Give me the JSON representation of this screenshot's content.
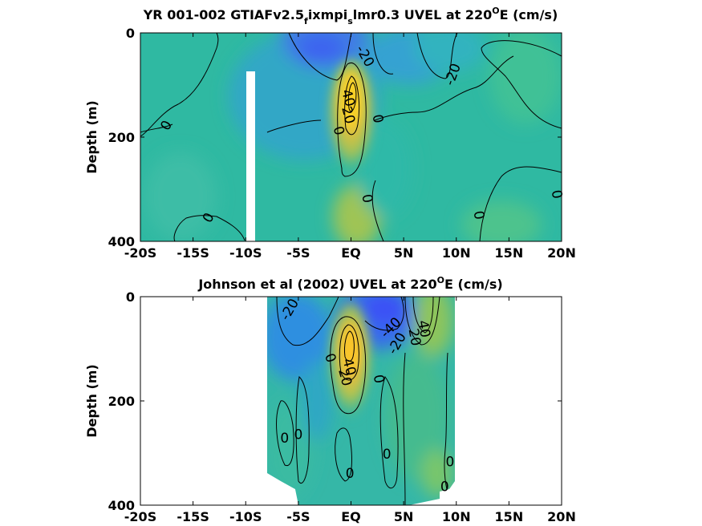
{
  "chart_data": [
    {
      "type": "heatmap",
      "title_main": "YR 001-002 GTIAFv2.5",
      "title_sub1": "f",
      "title_mid": "ixmpi",
      "title_sub2": "s",
      "title_tail": "lmr0.3 UVEL at 220",
      "title_sup": "O",
      "title_end": "E (cm/s)",
      "ylabel": "Depth (m)",
      "x_ticks": [
        "-20S",
        "-15S",
        "-10S",
        "-5S",
        "EQ",
        "5N",
        "10N",
        "15N",
        "20N"
      ],
      "x_tick_values": [
        -20,
        -15,
        -10,
        -5,
        0,
        5,
        10,
        15,
        20
      ],
      "y_ticks": [
        "0",
        "200",
        "400"
      ],
      "y_tick_values": [
        0,
        200,
        400
      ],
      "xlim": [
        -20,
        20
      ],
      "ylim": [
        0,
        400
      ],
      "y_reversed": true,
      "colormap": "parula",
      "contour_labels": [
        {
          "text": "-20",
          "lat": 1.3,
          "depth": 45,
          "rot": 60
        },
        {
          "text": "-20",
          "lat": 9.7,
          "depth": 80,
          "rot": -70
        },
        {
          "text": "40",
          "lat": -0.3,
          "depth": 125,
          "rot": 75
        },
        {
          "text": "20",
          "lat": -0.3,
          "depth": 158,
          "rot": 75
        },
        {
          "text": "0",
          "lat": -1.2,
          "depth": 188,
          "rot": 75
        },
        {
          "text": "0",
          "lat": -17.5,
          "depth": 178,
          "rot": -60
        },
        {
          "text": "0",
          "lat": 2.5,
          "depth": 165,
          "rot": 80
        },
        {
          "text": "0",
          "lat": 1.5,
          "depth": 318,
          "rot": 80
        },
        {
          "text": "0",
          "lat": -13.5,
          "depth": 355,
          "rot": -60
        },
        {
          "text": "0",
          "lat": 12.1,
          "depth": 350,
          "rot": 80
        },
        {
          "text": "0",
          "lat": 19.5,
          "depth": 310,
          "rot": 80
        }
      ]
    },
    {
      "type": "heatmap",
      "title_main": "Johnson et al (2002) UVEL at 220",
      "title_sup": "O",
      "title_end": "E (cm/s)",
      "ylabel": "Depth (m)",
      "x_ticks": [
        "-20S",
        "-15S",
        "-10S",
        "-5S",
        "EQ",
        "5N",
        "10N",
        "15N",
        "20N"
      ],
      "x_tick_values": [
        -20,
        -15,
        -10,
        -5,
        0,
        5,
        10,
        15,
        20
      ],
      "y_ticks": [
        "0",
        "200",
        "400"
      ],
      "y_tick_values": [
        0,
        200,
        400
      ],
      "xlim": [
        -20,
        20
      ],
      "ylim": [
        0,
        400
      ],
      "y_reversed": true,
      "data_lat_range": [
        -8,
        10
      ],
      "colormap": "parula",
      "contour_labels": [
        {
          "text": "-20",
          "lat": -5.8,
          "depth": 25,
          "rot": -60
        },
        {
          "text": "-40",
          "lat": 3.8,
          "depth": 60,
          "rot": -45
        },
        {
          "text": "-20",
          "lat": 4.4,
          "depth": 90,
          "rot": -60
        },
        {
          "text": "20",
          "lat": 6.0,
          "depth": 78,
          "rot": 80
        },
        {
          "text": "40",
          "lat": 6.9,
          "depth": 62,
          "rot": 80
        },
        {
          "text": "0",
          "lat": -2.0,
          "depth": 118,
          "rot": 70
        },
        {
          "text": "40",
          "lat": -0.2,
          "depth": 135,
          "rot": 75
        },
        {
          "text": "20",
          "lat": -0.6,
          "depth": 155,
          "rot": 75
        },
        {
          "text": "0",
          "lat": 2.6,
          "depth": 158,
          "rot": 80
        },
        {
          "text": "0",
          "lat": -6.3,
          "depth": 272,
          "rot": 0
        },
        {
          "text": "0",
          "lat": -5.0,
          "depth": 265,
          "rot": 0
        },
        {
          "text": "0",
          "lat": 3.4,
          "depth": 303,
          "rot": 0
        },
        {
          "text": "0",
          "lat": 9.4,
          "depth": 318,
          "rot": 0
        },
        {
          "text": "0",
          "lat": -0.1,
          "depth": 340,
          "rot": 0
        },
        {
          "text": "0",
          "lat": 8.9,
          "depth": 365,
          "rot": 0
        }
      ]
    }
  ]
}
